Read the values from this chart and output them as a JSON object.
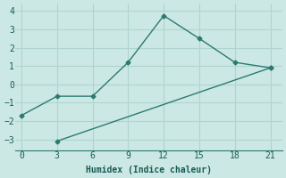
{
  "xlabel": "Humidex (Indice chaleur)",
  "bg_color": "#cce8e4",
  "grid_color": "#b0d4cf",
  "line_color": "#2a7a70",
  "line1_x": [
    0,
    3,
    6,
    9,
    12,
    15,
    18,
    21
  ],
  "line1_y": [
    -1.7,
    -0.65,
    -0.65,
    1.2,
    3.75,
    2.5,
    1.2,
    0.9
  ],
  "line2_x": [
    3,
    21
  ],
  "line2_y": [
    -3.1,
    0.9
  ],
  "xlim": [
    -0.5,
    22
  ],
  "ylim": [
    -3.6,
    4.4
  ],
  "xticks": [
    0,
    3,
    6,
    9,
    12,
    15,
    18,
    21
  ],
  "yticks": [
    -3,
    -2,
    -1,
    0,
    1,
    2,
    3,
    4
  ]
}
